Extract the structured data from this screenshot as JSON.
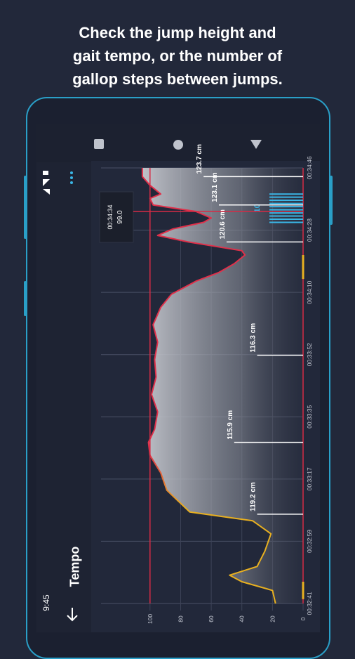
{
  "caption": {
    "line1": "Check the jump height and",
    "line2": "gait tempo, or the number of",
    "line3": "gallop steps between jumps."
  },
  "status": {
    "time": "9:45"
  },
  "appbar": {
    "title": "Tempo",
    "back_icon": "arrow-left-icon",
    "menu_icon": "more-vertical-icon"
  },
  "navbar": {
    "recents_icon": "square-icon",
    "home_icon": "circle-icon",
    "back_icon": "triangle-icon"
  },
  "colors": {
    "background": "#22283a",
    "accent": "#2a9fc7",
    "tempo_line": "#e0304a",
    "tempo_line_low": "#e8b020",
    "limit_line": "#d62b45",
    "step_bars": "#3ab6e6",
    "tempo_fill": "#8a8e98"
  },
  "chart_data": {
    "type": "area",
    "value_axis": {
      "ticks": [
        "100",
        "80",
        "60",
        "40",
        "20",
        "0"
      ],
      "range": [
        0,
        110
      ]
    },
    "time_axis": {
      "ticks": [
        "00:32:41",
        "00:32:59",
        "00:33:17",
        "00:33:35",
        "00:33:52",
        "00:34:10",
        "00:34:28",
        "00:34:46"
      ]
    },
    "cursor": {
      "time": "00:34:34",
      "value": "99.0"
    },
    "limit_value": 100,
    "tempo_series": [
      {
        "t": 0.0,
        "v": 18
      },
      {
        "t": 0.03,
        "v": 20
      },
      {
        "t": 0.05,
        "v": 40
      },
      {
        "t": 0.065,
        "v": 48
      },
      {
        "t": 0.085,
        "v": 30
      },
      {
        "t": 0.12,
        "v": 25
      },
      {
        "t": 0.16,
        "v": 21
      },
      {
        "t": 0.19,
        "v": 33
      },
      {
        "t": 0.21,
        "v": 74
      },
      {
        "t": 0.26,
        "v": 89
      },
      {
        "t": 0.3,
        "v": 93
      },
      {
        "t": 0.34,
        "v": 100
      },
      {
        "t": 0.37,
        "v": 101
      },
      {
        "t": 0.4,
        "v": 97
      },
      {
        "t": 0.44,
        "v": 95
      },
      {
        "t": 0.48,
        "v": 99
      },
      {
        "t": 0.52,
        "v": 96
      },
      {
        "t": 0.56,
        "v": 97
      },
      {
        "t": 0.6,
        "v": 95
      },
      {
        "t": 0.64,
        "v": 98
      },
      {
        "t": 0.68,
        "v": 93
      },
      {
        "t": 0.71,
        "v": 86
      },
      {
        "t": 0.74,
        "v": 70
      },
      {
        "t": 0.76,
        "v": 55
      },
      {
        "t": 0.78,
        "v": 45
      },
      {
        "t": 0.8,
        "v": 38
      },
      {
        "t": 0.81,
        "v": 40
      },
      {
        "t": 0.83,
        "v": 75
      },
      {
        "t": 0.845,
        "v": 95
      },
      {
        "t": 0.86,
        "v": 85
      },
      {
        "t": 0.875,
        "v": 65
      },
      {
        "t": 0.885,
        "v": 60
      },
      {
        "t": 0.9,
        "v": 70
      },
      {
        "t": 0.915,
        "v": 98
      },
      {
        "t": 0.93,
        "v": 100
      },
      {
        "t": 0.94,
        "v": 93
      },
      {
        "t": 0.96,
        "v": 100
      },
      {
        "t": 0.98,
        "v": 105
      },
      {
        "t": 1.0,
        "v": 105
      }
    ],
    "jumps": [
      {
        "label": "119.2 cm",
        "t": 0.205,
        "v": 30
      },
      {
        "label": "115.9 cm",
        "t": 0.37,
        "v": 45
      },
      {
        "label": "116.3 cm",
        "t": 0.57,
        "v": 30
      },
      {
        "label": "120.6 cm",
        "t": 0.83,
        "v": 50
      },
      {
        "label": "123.1 cm",
        "t": 0.915,
        "v": 55
      },
      {
        "label": "123.7 cm",
        "t": 0.98,
        "v": 65
      }
    ],
    "gallop_steps": {
      "count": "10",
      "t_start": 0.875,
      "t_end": 0.94
    }
  }
}
